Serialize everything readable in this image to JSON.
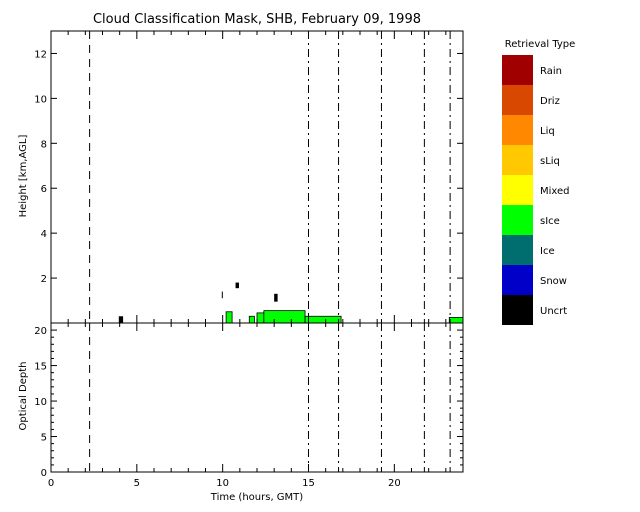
{
  "chart_data": [
    {
      "type": "heatmap",
      "title": "Cloud Classification Mask, SHB, February 09, 1998",
      "xlabel": "",
      "ylabel": "Height [km,AGL]",
      "xlim": [
        0,
        24
      ],
      "ylim": [
        0,
        13
      ],
      "yticks": [
        2,
        4,
        6,
        8,
        10,
        12
      ],
      "grid": false,
      "vertical_lines": [
        {
          "x": 2.25,
          "style": "dashed"
        },
        {
          "x": 15.0,
          "style": "dash-dot"
        },
        {
          "x": 16.75,
          "style": "dash-dot"
        },
        {
          "x": 19.25,
          "style": "dash-dot"
        },
        {
          "x": 21.75,
          "style": "dash-dot"
        },
        {
          "x": 23.25,
          "style": "dash-dot"
        }
      ],
      "cloud_regions": [
        {
          "class": "Uncrt",
          "x0": 3.95,
          "x1": 4.2,
          "y0": 0.0,
          "y1": 0.3
        },
        {
          "class": "Uncrt",
          "x0": 9.95,
          "x1": 10.0,
          "y0": 1.1,
          "y1": 1.4
        },
        {
          "class": "sIce",
          "x0": 10.2,
          "x1": 10.55,
          "y0": 0.0,
          "y1": 0.5
        },
        {
          "class": "Uncrt",
          "x0": 10.75,
          "x1": 10.95,
          "y0": 1.55,
          "y1": 1.8
        },
        {
          "class": "sIce",
          "x0": 11.55,
          "x1": 11.85,
          "y0": 0.0,
          "y1": 0.3
        },
        {
          "class": "sIce",
          "x0": 12.0,
          "x1": 12.4,
          "y0": 0.0,
          "y1": 0.45
        },
        {
          "class": "sIce",
          "x0": 12.4,
          "x1": 14.8,
          "y0": 0.0,
          "y1": 0.55
        },
        {
          "class": "Uncrt",
          "x0": 13.0,
          "x1": 13.2,
          "y0": 0.95,
          "y1": 1.3
        },
        {
          "class": "sIce",
          "x0": 14.8,
          "x1": 16.9,
          "y0": 0.0,
          "y1": 0.3
        },
        {
          "class": "sIce",
          "x0": 23.2,
          "x1": 24.0,
          "y0": 0.0,
          "y1": 0.25
        }
      ]
    },
    {
      "type": "line",
      "title": "",
      "xlabel": "Time (hours, GMT)",
      "ylabel": "Optical Depth",
      "xlim": [
        0,
        24
      ],
      "ylim": [
        0,
        21
      ],
      "xticks": [
        0,
        5,
        10,
        15,
        20
      ],
      "yticks": [
        0,
        5,
        10,
        15,
        20
      ],
      "series": []
    }
  ],
  "legend": {
    "title": "Retrieval Type",
    "items": [
      {
        "label": "Rain",
        "color": "#a00000"
      },
      {
        "label": "Driz",
        "color": "#d84800"
      },
      {
        "label": "Liq",
        "color": "#ff8800"
      },
      {
        "label": "sLiq",
        "color": "#ffc800"
      },
      {
        "label": "Mixed",
        "color": "#ffff00"
      },
      {
        "label": "sIce",
        "color": "#00ff00"
      },
      {
        "label": "Ice",
        "color": "#006e6e"
      },
      {
        "label": "Snow",
        "color": "#0000c8"
      },
      {
        "label": "Uncrt",
        "color": "#000000"
      }
    ]
  }
}
